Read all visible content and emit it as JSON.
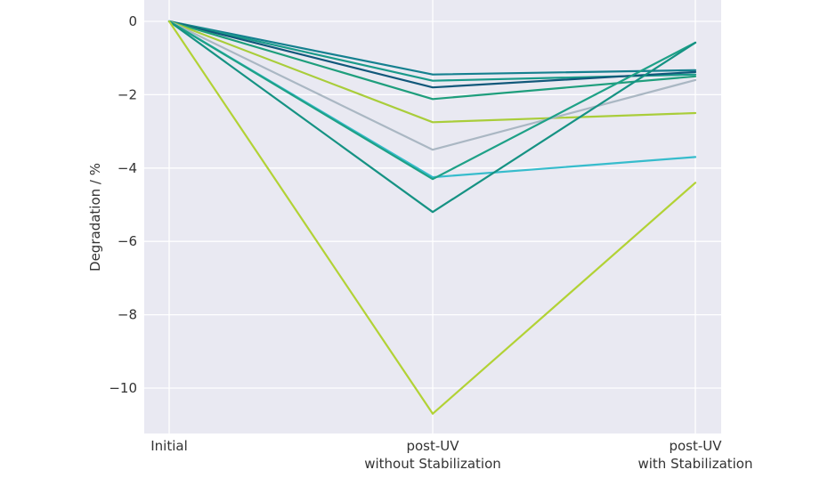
{
  "chart_data": {
    "type": "line",
    "title": "",
    "xlabel": "",
    "ylabel": "Degradation / %",
    "categories": [
      [
        "Initial"
      ],
      [
        "post-UV",
        "without Stabilization"
      ],
      [
        "post-UV",
        "with Stabilization"
      ]
    ],
    "ylim": [
      -11.2,
      0.3
    ],
    "yticks": [
      0,
      -2,
      -4,
      -6,
      -8,
      -10
    ],
    "ytick_labels": [
      "0",
      "−2",
      "−4",
      "−6",
      "−8",
      "−10"
    ],
    "grid": true,
    "legend": "none",
    "series": [
      {
        "values": [
          0,
          -1.45,
          -1.33
        ],
        "color": "#15808f"
      },
      {
        "values": [
          0,
          -1.62,
          -1.45
        ],
        "color": "#1a9a8a"
      },
      {
        "values": [
          0,
          -1.8,
          -1.38
        ],
        "color": "#11587a"
      },
      {
        "values": [
          0,
          -2.12,
          -1.5
        ],
        "color": "#1e9e7c"
      },
      {
        "values": [
          0,
          -2.75,
          -2.5
        ],
        "color": "#a9cd3a"
      },
      {
        "values": [
          0,
          -3.5,
          -1.6
        ],
        "color": "#aab7c3"
      },
      {
        "values": [
          0,
          -4.25,
          -3.7
        ],
        "color": "#36bccc"
      },
      {
        "values": [
          0,
          -4.3,
          -0.58
        ],
        "color": "#1ea187"
      },
      {
        "values": [
          0,
          -5.2,
          -0.58
        ],
        "color": "#159283"
      },
      {
        "values": [
          0,
          -10.7,
          -4.4
        ],
        "color": "#b2d235"
      }
    ]
  }
}
